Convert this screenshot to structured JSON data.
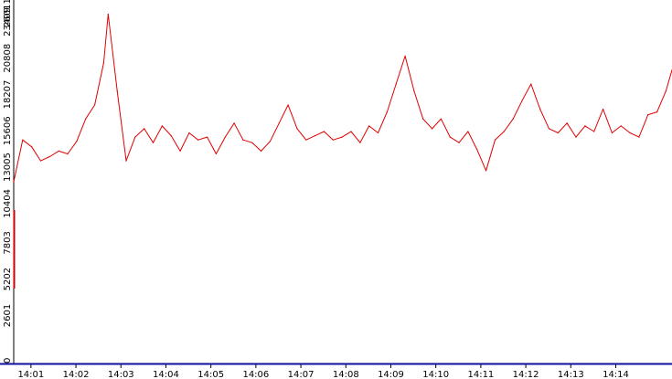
{
  "chart_data": {
    "type": "line",
    "title": "",
    "xlabel": "",
    "ylabel": "",
    "ylim": [
      0,
      26011
    ],
    "y_ticks": [
      0,
      2601,
      5202,
      7803,
      10404,
      13005,
      15606,
      18207,
      20808,
      23409,
      26011
    ],
    "x_ticks": [
      "14:01",
      "14:02",
      "14:03",
      "14:04",
      "14:05",
      "14:06",
      "14:07",
      "14:08",
      "14:09",
      "14:10",
      "14:11",
      "14:12",
      "14:13",
      "14:14"
    ],
    "x_range_minutes": [
      "14:00:37",
      "14:15:15"
    ],
    "grid": false,
    "legend": "none",
    "colors": {
      "line": "#e00000",
      "x_axis": "#1010a0",
      "y_axis": "#000000",
      "y_marker": "#cc0000"
    },
    "series": [
      {
        "color": "#e00000",
        "x": [
          "14:00:37",
          "14:00:49",
          "14:01:01",
          "14:01:13",
          "14:01:25",
          "14:01:37",
          "14:01:49",
          "14:02:01",
          "14:02:13",
          "14:02:25",
          "14:02:37",
          "14:02:43",
          "14:02:55",
          "14:03:07",
          "14:03:19",
          "14:03:31",
          "14:03:43",
          "14:03:55",
          "14:04:07",
          "14:04:19",
          "14:04:31",
          "14:04:43",
          "14:04:55",
          "14:05:07",
          "14:05:19",
          "14:05:31",
          "14:05:43",
          "14:05:55",
          "14:06:07",
          "14:06:19",
          "14:06:31",
          "14:06:43",
          "14:06:55",
          "14:07:07",
          "14:07:19",
          "14:07:31",
          "14:07:43",
          "14:07:55",
          "14:08:07",
          "14:08:19",
          "14:08:31",
          "14:08:43",
          "14:08:55",
          "14:09:07",
          "14:09:19",
          "14:09:31",
          "14:09:43",
          "14:09:55",
          "14:10:07",
          "14:10:19",
          "14:10:31",
          "14:10:43",
          "14:10:55",
          "14:11:07",
          "14:11:19",
          "14:11:31",
          "14:11:43",
          "14:11:55",
          "14:12:07",
          "14:12:19",
          "14:12:31",
          "14:12:43",
          "14:12:55",
          "14:13:07",
          "14:13:19",
          "14:13:31",
          "14:13:43",
          "14:13:55",
          "14:14:07",
          "14:14:19",
          "14:14:31",
          "14:14:43",
          "14:14:55",
          "14:15:07",
          "14:15:15"
        ],
        "values": [
          13000,
          16000,
          15500,
          14500,
          14800,
          15200,
          15000,
          15900,
          17500,
          18500,
          21500,
          25000,
          19500,
          14500,
          16200,
          16800,
          15800,
          17000,
          16300,
          15200,
          16500,
          16000,
          16200,
          15000,
          16200,
          17200,
          16000,
          15800,
          15200,
          15900,
          17200,
          18500,
          16800,
          16000,
          16300,
          16600,
          16000,
          16200,
          16600,
          15800,
          17000,
          16500,
          18000,
          20000,
          22000,
          19500,
          17500,
          16800,
          17500,
          16200,
          15800,
          16600,
          15300,
          13800,
          16000,
          16600,
          17500,
          18800,
          20000,
          18200,
          16800,
          16500,
          17200,
          16200,
          17000,
          16600,
          18200,
          16500,
          17000,
          16500,
          16200,
          17800,
          18000,
          19500,
          21000
        ]
      }
    ]
  }
}
